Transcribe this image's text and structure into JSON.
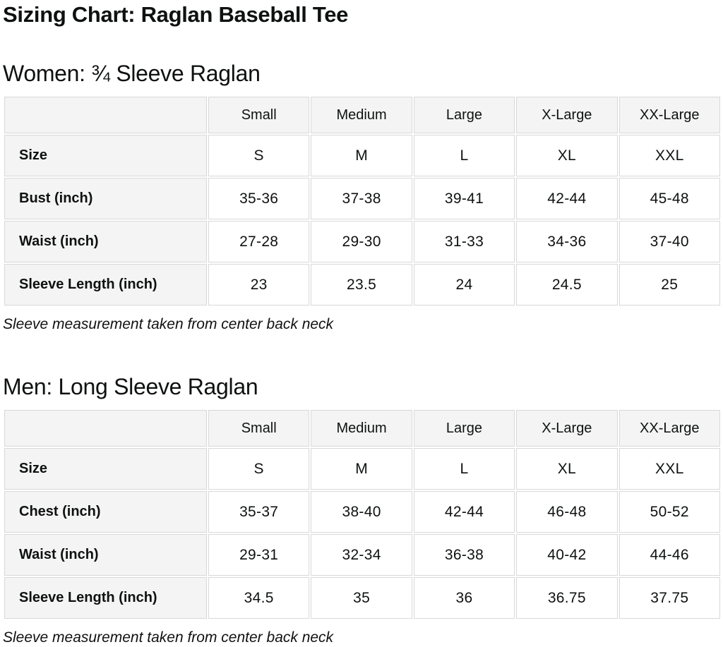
{
  "page": {
    "title": "Sizing Chart: Raglan Baseball Tee"
  },
  "colors": {
    "background": "#ffffff",
    "header_cell_bg": "#f4f4f4",
    "label_cell_bg": "#f4f4f4",
    "cell_border": "#d8d8d8",
    "text": "#0f1111"
  },
  "sections": [
    {
      "heading": "Women: ¾ Sleeve Raglan",
      "note": "Sleeve measurement taken from center back neck",
      "table": {
        "columns": [
          "",
          "Small",
          "Medium",
          "Large",
          "X-Large",
          "XX-Large"
        ],
        "rows": [
          {
            "label": "Size",
            "values": [
              "S",
              "M",
              "L",
              "XL",
              "XXL"
            ]
          },
          {
            "label": "Bust (inch)",
            "values": [
              "35-36",
              "37-38",
              "39-41",
              "42-44",
              "45-48"
            ]
          },
          {
            "label": "Waist (inch)",
            "values": [
              "27-28",
              "29-30",
              "31-33",
              "34-36",
              "37-40"
            ]
          },
          {
            "label": "Sleeve Length (inch)",
            "values": [
              "23",
              "23.5",
              "24",
              "24.5",
              "25"
            ]
          }
        ]
      }
    },
    {
      "heading": "Men: Long Sleeve Raglan",
      "note": "Sleeve measurement taken from center back neck",
      "table": {
        "columns": [
          "",
          "Small",
          "Medium",
          "Large",
          "X-Large",
          "XX-Large"
        ],
        "rows": [
          {
            "label": "Size",
            "values": [
              "S",
              "M",
              "L",
              "XL",
              "XXL"
            ]
          },
          {
            "label": "Chest (inch)",
            "values": [
              "35-37",
              "38-40",
              "42-44",
              "46-48",
              "50-52"
            ]
          },
          {
            "label": "Waist (inch)",
            "values": [
              "29-31",
              "32-34",
              "36-38",
              "40-42",
              "44-46"
            ]
          },
          {
            "label": "Sleeve Length (inch)",
            "values": [
              "34.5",
              "35",
              "36",
              "36.75",
              "37.75"
            ]
          }
        ]
      }
    }
  ]
}
